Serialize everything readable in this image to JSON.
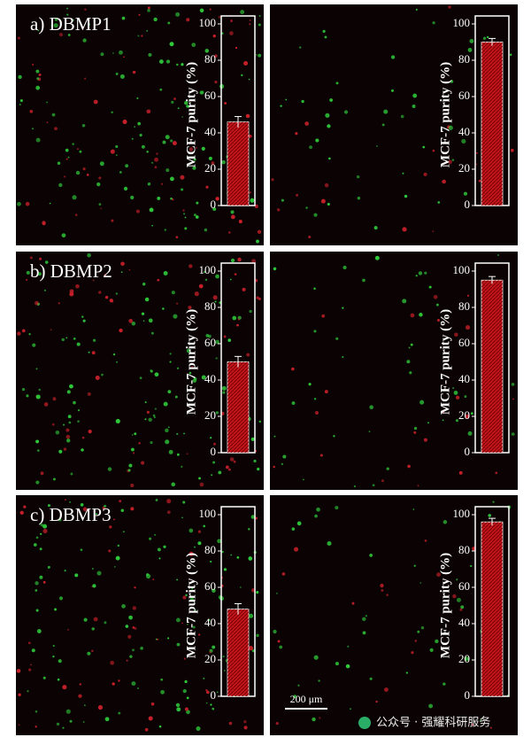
{
  "chart_data": [
    {
      "type": "bar",
      "title": "a) DBMP1",
      "ylabel": "MCF-7 purity (%)",
      "values": [
        46
      ],
      "errors": [
        3
      ],
      "color": "#c0141a",
      "ylim": [
        0,
        100
      ],
      "yticks": [
        0,
        20,
        40,
        60,
        80,
        100
      ]
    },
    {
      "type": "bar",
      "ylabel": "MCF-7 purity (%)",
      "values": [
        90
      ],
      "errors": [
        2
      ],
      "color": "#c0141a",
      "ylim": [
        0,
        100
      ],
      "yticks": [
        0,
        20,
        40,
        60,
        80,
        100
      ]
    },
    {
      "type": "bar",
      "title": "b) DBMP2",
      "ylabel": "MCF-7 purity (%)",
      "values": [
        50
      ],
      "errors": [
        3
      ],
      "color": "#c0141a",
      "ylim": [
        0,
        100
      ],
      "yticks": [
        0,
        20,
        40,
        60,
        80,
        100
      ]
    },
    {
      "type": "bar",
      "ylabel": "MCF-7 purity (%)",
      "values": [
        95
      ],
      "errors": [
        2
      ],
      "color": "#c0141a",
      "ylim": [
        0,
        100
      ],
      "yticks": [
        0,
        20,
        40,
        60,
        80,
        100
      ]
    },
    {
      "type": "bar",
      "title": "c) DBMP3",
      "ylabel": "MCF-7 purity (%)",
      "values": [
        48
      ],
      "errors": [
        3
      ],
      "color": "#c0141a",
      "ylim": [
        0,
        100
      ],
      "yticks": [
        0,
        20,
        40,
        60,
        80,
        100
      ]
    },
    {
      "type": "bar",
      "ylabel": "MCF-7 purity (%)",
      "values": [
        96
      ],
      "errors": [
        2
      ],
      "color": "#c0141a",
      "ylim": [
        0,
        100
      ],
      "yticks": [
        0,
        20,
        40,
        60,
        80,
        100
      ]
    }
  ],
  "scale_bar": "200 μm",
  "watermark": "公众号 · 强耀科研服务"
}
